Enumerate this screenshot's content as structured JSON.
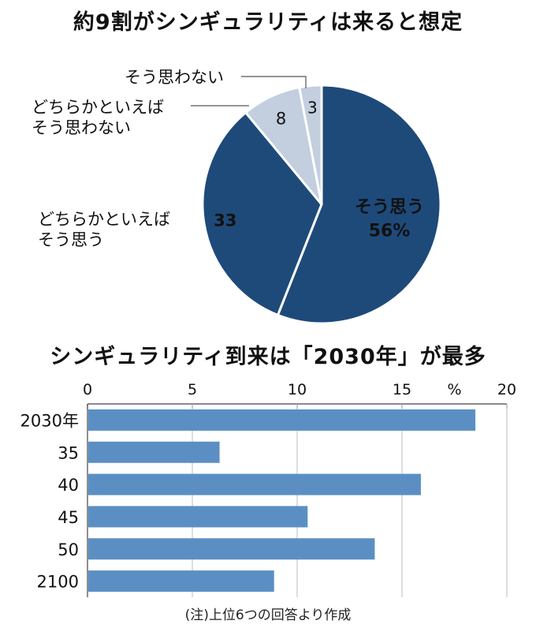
{
  "chart_data": [
    {
      "type": "pie",
      "title": "約9割がシンギュラリティは来ると想定",
      "slices": [
        {
          "label": "そう思う",
          "value": 56,
          "value_label": "56%",
          "color": "#1e4a7a",
          "text_color": "#ffffff"
        },
        {
          "label": "どちらかといえば\nそう思う",
          "value": 33,
          "value_label": "33",
          "color": "#1e4a7a",
          "text_color": "#ffffff"
        },
        {
          "label": "どちらかといえば\nそう思わない",
          "value": 8,
          "value_label": "8",
          "color": "#c3cede",
          "text_color": "#111111"
        },
        {
          "label": "そう思わない",
          "value": 3,
          "value_label": "3",
          "color": "#c3cede",
          "text_color": "#111111"
        }
      ]
    },
    {
      "type": "bar",
      "orientation": "horizontal",
      "title": "シンギュラリティ到来は「2030年」が最多",
      "categories": [
        "2030年",
        "35",
        "40",
        "45",
        "50",
        "2100"
      ],
      "values": [
        18.5,
        6.3,
        15.9,
        10.5,
        13.7,
        8.9
      ],
      "xlim": [
        0,
        20
      ],
      "xticks": [
        "0",
        "5",
        "10",
        "15",
        "%",
        "20"
      ],
      "grid": true,
      "bar_color": "#5b8fc4"
    }
  ],
  "note": "(注)上位6つの回答より作成"
}
